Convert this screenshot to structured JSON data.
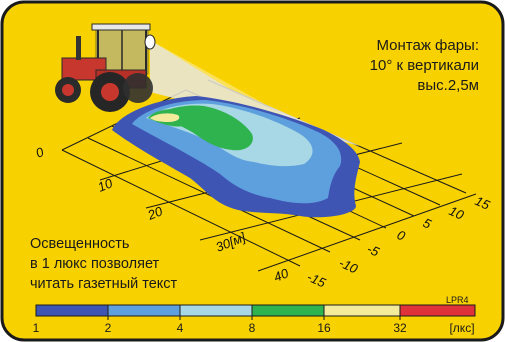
{
  "mount_lines": [
    "Монтаж фары:",
    "10° к вертикали",
    "выс.2,5м"
  ],
  "note_lines": [
    "Освещенность",
    "в 1 люкс позволяет",
    "читать газетный текст"
  ],
  "model": "LPR4",
  "distance_ticks": [
    "0",
    "10",
    "20",
    "30[м]",
    "40"
  ],
  "lateral_ticks": [
    "15",
    "10",
    "5",
    "0",
    "-5",
    "-10",
    "-15"
  ],
  "legend": {
    "labels": [
      "1",
      "2",
      "4",
      "8",
      "16",
      "32",
      "[лкс]"
    ],
    "colors": [
      "#3f55b4",
      "#5ea0de",
      "#a8d8e6",
      "#2fb34e",
      "#f3ea9c",
      "#e0323a"
    ]
  },
  "colors": {
    "background": "#f8d100",
    "frame": "#1a1a1a"
  }
}
